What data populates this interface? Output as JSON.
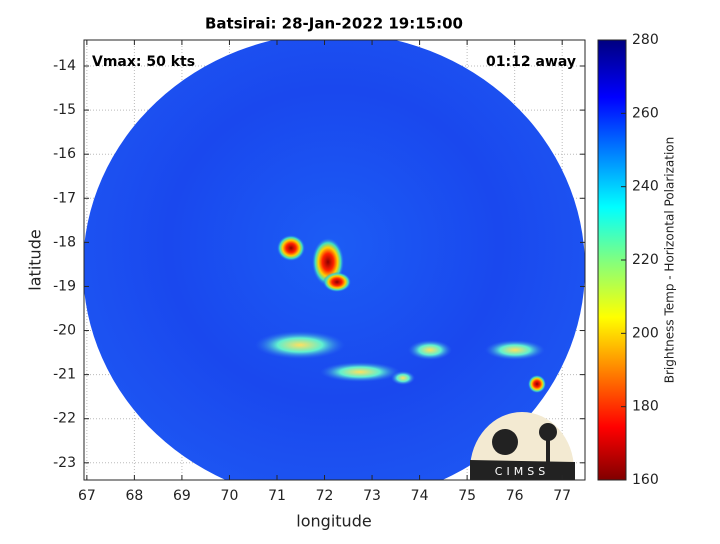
{
  "chart_data": {
    "type": "image",
    "title": "Batsirai: 28-Jan-2022 19:15:00",
    "annotations": [
      "Vmax: 50 kts",
      "01:12 away"
    ],
    "x_label": "longitude",
    "y_label": "latitude",
    "xlim": [
      66.94,
      77.48
    ],
    "xticks": [
      67,
      68,
      69,
      70,
      71,
      72,
      73,
      74,
      75,
      76,
      77
    ],
    "ylim": [
      -23.39,
      -13.41
    ],
    "yticks": [
      -14,
      -15,
      -16,
      -17,
      -18,
      -19,
      -20,
      -21,
      -22,
      -23
    ],
    "grid": true,
    "colorbar": {
      "label": "Brightness Temp - Horizontal Polarization",
      "clim": [
        160,
        280
      ],
      "ticks": [
        160,
        180,
        200,
        220,
        240,
        260,
        280
      ]
    },
    "logo": "CIMSS"
  }
}
